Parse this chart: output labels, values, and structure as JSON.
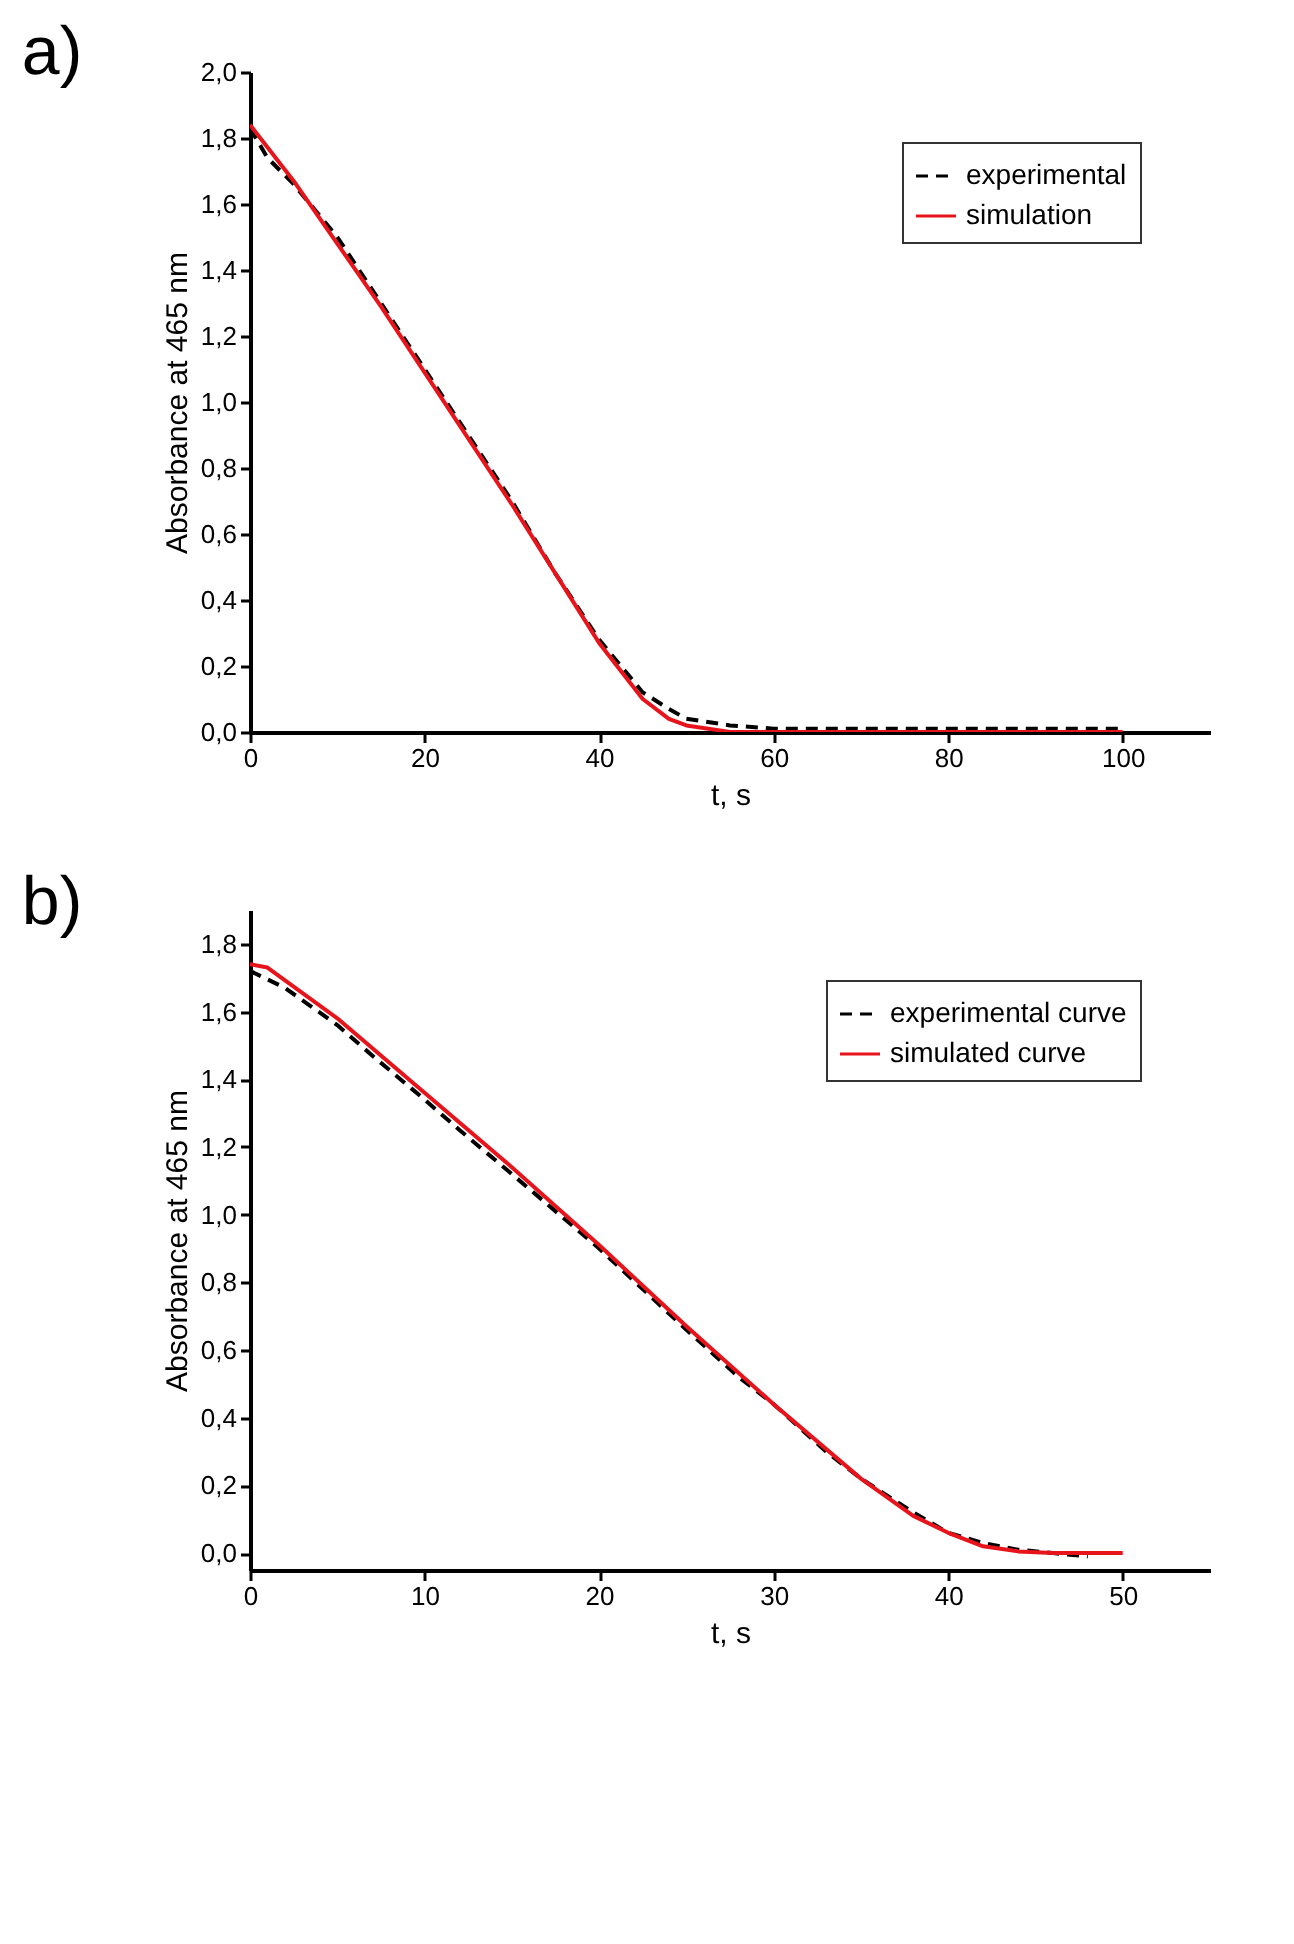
{
  "chart_data": [
    {
      "type": "line",
      "title": "a)",
      "xlabel": "t, s",
      "ylabel": "Absorbance at 465 nm",
      "xlim": [
        0,
        110
      ],
      "xticks": [
        0,
        20,
        40,
        60,
        80,
        100
      ],
      "ylim": [
        0,
        2.0
      ],
      "yticks": [
        {
          "value": 0,
          "label": "0,0"
        },
        {
          "value": 0.2,
          "label": "0,2"
        },
        {
          "value": 0.4,
          "label": "0,4"
        },
        {
          "value": 0.6,
          "label": "0,6"
        },
        {
          "value": 0.8,
          "label": "0,8"
        },
        {
          "value": 1.0,
          "label": "1,0"
        },
        {
          "value": 1.2,
          "label": "1,2"
        },
        {
          "value": 1.4,
          "label": "1,4"
        },
        {
          "value": 1.6,
          "label": "1,6"
        },
        {
          "value": 1.8,
          "label": "1,8"
        },
        {
          "value": 2.0,
          "label": "2,0"
        }
      ],
      "grid": false,
      "legend": "top right",
      "series": [
        {
          "name": "experimental",
          "color": "#000000",
          "line_style": "dashed",
          "x": [
            0,
            2,
            5,
            10,
            15,
            20,
            25,
            30,
            35,
            40,
            45,
            48,
            50,
            55,
            60,
            70,
            80,
            90,
            100
          ],
          "values": [
            1.83,
            1.74,
            1.66,
            1.5,
            1.3,
            1.1,
            0.9,
            0.7,
            0.48,
            0.28,
            0.12,
            0.07,
            0.04,
            0.02,
            0.01,
            0.01,
            0.01,
            0.01,
            0.01
          ]
        },
        {
          "name": "simulation",
          "color": "#e8141c",
          "line_style": "solid",
          "x": [
            0,
            5,
            10,
            15,
            20,
            25,
            30,
            35,
            40,
            45,
            48,
            50,
            55,
            60,
            80,
            100
          ],
          "values": [
            1.84,
            1.67,
            1.48,
            1.29,
            1.09,
            0.89,
            0.69,
            0.48,
            0.27,
            0.1,
            0.04,
            0.02,
            0.0,
            0.0,
            0.0,
            0.0
          ]
        }
      ]
    },
    {
      "type": "line",
      "title": "b)",
      "xlabel": "t, s",
      "ylabel": "Absorbance at 465 nm",
      "xlim": [
        0,
        55
      ],
      "xticks": [
        0,
        10,
        20,
        30,
        40,
        50
      ],
      "ylim": [
        -0.05,
        1.9
      ],
      "yticks": [
        {
          "value": 0,
          "label": "0,0"
        },
        {
          "value": 0.2,
          "label": "0,2"
        },
        {
          "value": 0.4,
          "label": "0,4"
        },
        {
          "value": 0.6,
          "label": "0,6"
        },
        {
          "value": 0.8,
          "label": "0,8"
        },
        {
          "value": 1.0,
          "label": "1,0"
        },
        {
          "value": 1.2,
          "label": "1,2"
        },
        {
          "value": 1.4,
          "label": "1,4"
        },
        {
          "value": 1.6,
          "label": "1,6"
        },
        {
          "value": 1.8,
          "label": "1,8"
        }
      ],
      "grid": false,
      "legend": "top right",
      "series": [
        {
          "name": "experimental curve",
          "color": "#000000",
          "line_style": "dashed",
          "x": [
            0,
            2,
            5,
            7,
            10,
            12,
            15,
            20,
            25,
            28,
            30,
            33,
            35,
            38,
            40,
            42,
            44,
            46,
            48
          ],
          "values": [
            1.72,
            1.67,
            1.56,
            1.47,
            1.34,
            1.25,
            1.12,
            0.9,
            0.66,
            0.52,
            0.44,
            0.3,
            0.22,
            0.12,
            0.06,
            0.03,
            0.01,
            0.0,
            -0.01
          ]
        },
        {
          "name": "simulated curve",
          "color": "#e8141c",
          "line_style": "solid",
          "x": [
            0,
            1,
            5,
            10,
            15,
            20,
            25,
            30,
            35,
            38,
            40,
            42,
            44,
            46,
            50
          ],
          "values": [
            1.74,
            1.73,
            1.58,
            1.36,
            1.14,
            0.91,
            0.67,
            0.44,
            0.22,
            0.11,
            0.06,
            0.02,
            0.005,
            0.0,
            0.0
          ]
        }
      ]
    }
  ]
}
